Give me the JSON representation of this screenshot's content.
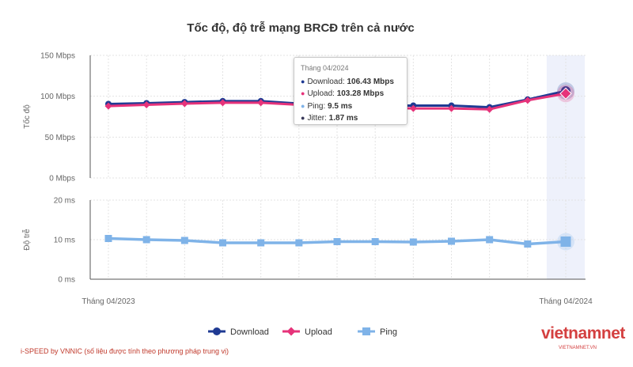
{
  "chart_data": {
    "type": "line",
    "title": "Tốc độ, độ trễ mạng BRCĐ trên cả nước",
    "x": [
      "Tháng 04/2023",
      "",
      "",
      "",
      "",
      "",
      "",
      "",
      "",
      "",
      "",
      "",
      "Tháng 04/2024"
    ],
    "x_tick_labels": [
      "Tháng 04/2023",
      "Tháng 04/2024"
    ],
    "panels": [
      {
        "ylabel": "Tốc độ",
        "yticks": [
          "150 Mbps",
          "100 Mbps",
          "50 Mbps",
          "0 Mbps"
        ],
        "ylim": [
          0,
          150
        ],
        "series": [
          {
            "name": "Download",
            "color": "#1f3a93",
            "values": [
              90.5,
              91.5,
              92.8,
              94.0,
              94.0,
              91.0,
              89.5,
              88.5,
              88.5,
              88.5,
              86.5,
              96.0,
              106.43
            ]
          },
          {
            "name": "Upload",
            "color": "#e6337a",
            "values": [
              88.0,
              89.5,
              91.0,
              92.0,
              92.0,
              89.5,
              87.5,
              86.5,
              85.0,
              85.0,
              84.0,
              95.0,
              103.28
            ]
          }
        ]
      },
      {
        "ylabel": "Độ trễ",
        "yticks": [
          "20 ms",
          "10 ms",
          "0 ms"
        ],
        "ylim": [
          0,
          20
        ],
        "series": [
          {
            "name": "Ping",
            "color": "#7fb3e8",
            "values": [
              10.3,
              10.0,
              9.8,
              9.2,
              9.2,
              9.2,
              9.5,
              9.5,
              9.4,
              9.6,
              10.0,
              8.9,
              9.5
            ]
          }
        ]
      }
    ],
    "legend": {
      "position": "bottom-center",
      "items": [
        "Download",
        "Upload",
        "Ping"
      ]
    },
    "grid": true,
    "highlight_index": 12
  },
  "tooltip": {
    "header": "Tháng 04/2024",
    "rows": [
      {
        "label": "Download:",
        "value": "106.43 Mbps",
        "color": "#1f3a93"
      },
      {
        "label": "Upload:",
        "value": "103.28 Mbps",
        "color": "#e6337a"
      },
      {
        "label": "Ping:",
        "value": "9.5 ms",
        "color": "#7fb3e8"
      },
      {
        "label": "Jitter:",
        "value": "1.87 ms",
        "color": "#3a3a5a"
      }
    ]
  },
  "footnote": "i-SPEED by VNNIC (số liệu được tính theo phương pháp trung vị)",
  "logo": {
    "main": "vietnamnet",
    "sub": "VIETNAMNET.VN"
  }
}
